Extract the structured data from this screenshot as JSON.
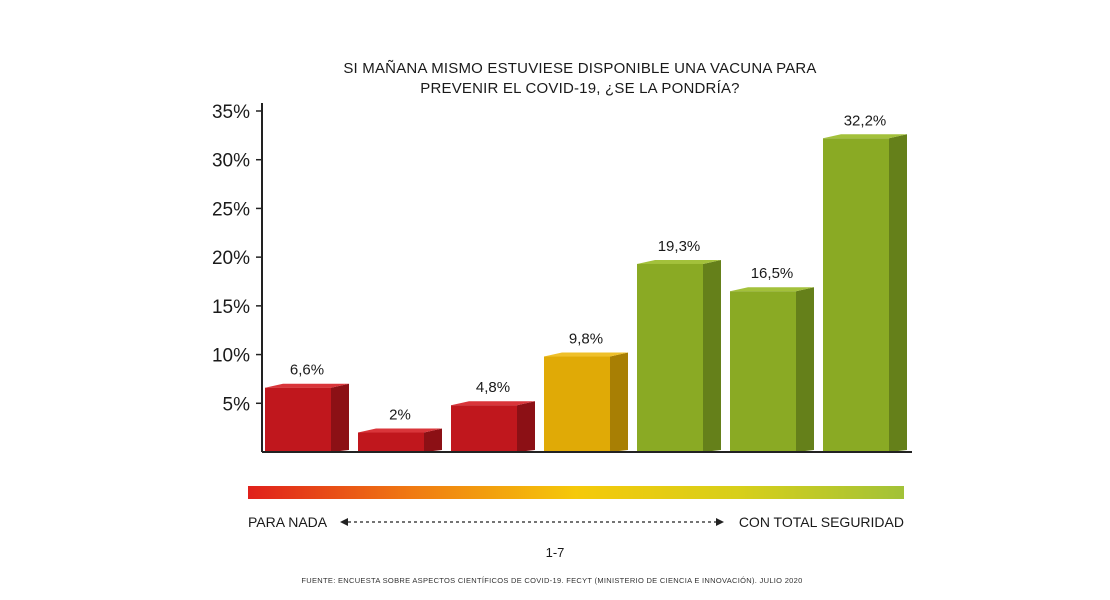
{
  "chart_data": {
    "type": "bar",
    "title_lines": [
      "SI MAÑANA MISMO ESTUVIESE DISPONIBLE UNA VACUNA PARA",
      "PREVENIR EL COVID-19, ¿SE LA PONDRÍA?"
    ],
    "values": [
      6.6,
      2,
      4.8,
      9.8,
      19.3,
      16.5,
      32.2
    ],
    "data_labels": [
      "6,6%",
      "2%",
      "4,8%",
      "9,8%",
      "19,3%",
      "16,5%",
      "32,2%"
    ],
    "y_ticks": [
      5,
      10,
      15,
      20,
      25,
      30,
      35
    ],
    "y_tick_labels": [
      "5%",
      "10%",
      "15%",
      "20%",
      "25%",
      "30%",
      "35%"
    ],
    "ylim": [
      0,
      35
    ],
    "grid": false,
    "bar_colors": [
      "#c0171d",
      "#c0171d",
      "#c0171d",
      "#e0aa06",
      "#8aaa24",
      "#8aaa24",
      "#8aaa24"
    ],
    "bar_side_colors": [
      "#8c1015",
      "#8c1015",
      "#8c1015",
      "#a87f04",
      "#65801a",
      "#65801a",
      "#65801a"
    ],
    "bar_top_colors": [
      "#d9353a",
      "#d9353a",
      "#d9353a",
      "#efc02a",
      "#a3c13b",
      "#a3c13b",
      "#a3c13b"
    ]
  },
  "scale": {
    "left_label": "PARA NADA",
    "right_label": "CON TOTAL SEGURIDAD",
    "range_label": "1-7",
    "gradient_colors": [
      "#e0201b",
      "#f07a12",
      "#f5c90a",
      "#d7cf1a",
      "#a2c238"
    ]
  },
  "source": "FUENTE: ENCUESTA SOBRE ASPECTOS CIENTÍFICOS DE COVID-19. FECYT (MINISTERIO DE CIENCIA E INNOVACIÓN). JULIO 2020"
}
